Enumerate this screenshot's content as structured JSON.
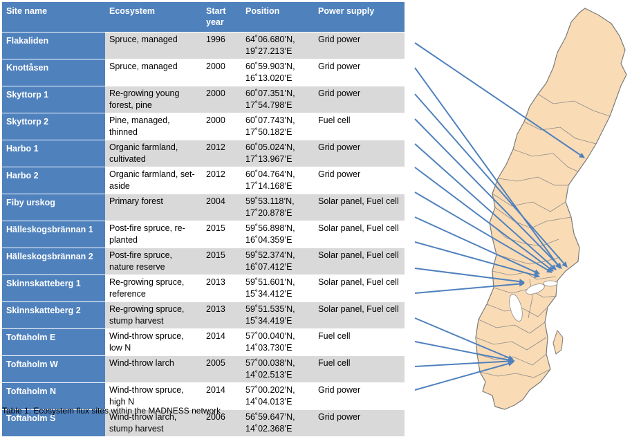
{
  "table": {
    "headers": [
      "Site name",
      "Ecosystem",
      "Start year",
      "Position",
      "Power supply"
    ],
    "rows": [
      {
        "site": "Flakaliden",
        "ecosystem": "Spruce, managed",
        "year": "1996",
        "position": "64˚06.680’N, 19˚27.213’E",
        "power": "Grid power"
      },
      {
        "site": "Knottåsen",
        "ecosystem": "Spruce, managed",
        "year": "2000",
        "position": "60˚59.903’N, 16˚13.020’E",
        "power": "Grid power"
      },
      {
        "site": "Skyttorp 1",
        "ecosystem": "Re-growing young forest, pine",
        "year": "2000",
        "position": "60˚07.351’N, 17˚54.798’E",
        "power": "Grid power"
      },
      {
        "site": "Skyttorp 2",
        "ecosystem": "Pine, managed, thinned",
        "year": "2000",
        "position": "60˚07.743’N, 17˚50.182’E",
        "power": "Fuel cell"
      },
      {
        "site": "Harbo 1",
        "ecosystem": "Organic farmland, cultivated",
        "year": "2012",
        "position": "60˚05.024’N, 17˚13.967’E",
        "power": "Grid power"
      },
      {
        "site": "Harbo 2",
        "ecosystem": "Organic farmland, set-aside",
        "year": "2012",
        "position": "60˚04.764’N, 17˚14.168’E",
        "power": "Grid power"
      },
      {
        "site": "Fiby urskog",
        "ecosystem": "Primary forest",
        "year": "2004",
        "position": "59˚53.118’N, 17˚20.878’E",
        "power": "Solar panel, Fuel cell"
      },
      {
        "site": "Hälleskogsbrännan 1",
        "ecosystem": "Post-fire spruce, re-planted",
        "year": "2015",
        "position": "59˚56.898’N, 16˚04.359’E",
        "power": "Solar panel, Fuel cell"
      },
      {
        "site": "Hälleskogsbrännan 2",
        "ecosystem": "Post-fire spruce, nature reserve",
        "year": "2015",
        "position": "59˚52.374’N, 16˚07.412’E",
        "power": "Solar panel, Fuel cell"
      },
      {
        "site": "Skinnskatteberg 1",
        "ecosystem": "Re-growing spruce, reference",
        "year": "2013",
        "position": "59˚51.601’N, 15˚34.412’E",
        "power": "Solar panel, Fuel cell"
      },
      {
        "site": "Skinnskatteberg 2",
        "ecosystem": "Re-growing spruce, stump harvest",
        "year": "2013",
        "position": "59˚51.535’N, 15˚34.419’E",
        "power": "Solar panel, Fuel cell"
      },
      {
        "site": "Toftaholm E",
        "ecosystem": "Wind-throw spruce, low N",
        "year": "2014",
        "position": "57˚00.040’N, 14˚03.730’E",
        "power": "Fuel cell"
      },
      {
        "site": "Toftaholm W",
        "ecosystem": "Wind-throw larch",
        "year": "2005",
        "position": "57˚00.038’N, 14˚02.513’E",
        "power": "Fuel cell"
      },
      {
        "site": "Toftaholm N",
        "ecosystem": "Wind-throw spruce, high N",
        "year": "2014",
        "position": "57˚00.202’N, 14˚04.013’E",
        "power": "Grid power"
      },
      {
        "site": "Toftaholm S",
        "ecosystem": "Wind-throw larch, stump harvest",
        "year": "2006",
        "position": "56˚59.647’N, 14˚02.368’E",
        "power": "Grid power"
      }
    ]
  },
  "caption": "Table 1: Ecosystem flux sites within the MADNESS network",
  "colors": {
    "header": "#4f81bd",
    "band": "#d9d9d9",
    "land": "#f9dbb5",
    "border": "#7a7a7a",
    "arrow": "#4f81bd"
  }
}
